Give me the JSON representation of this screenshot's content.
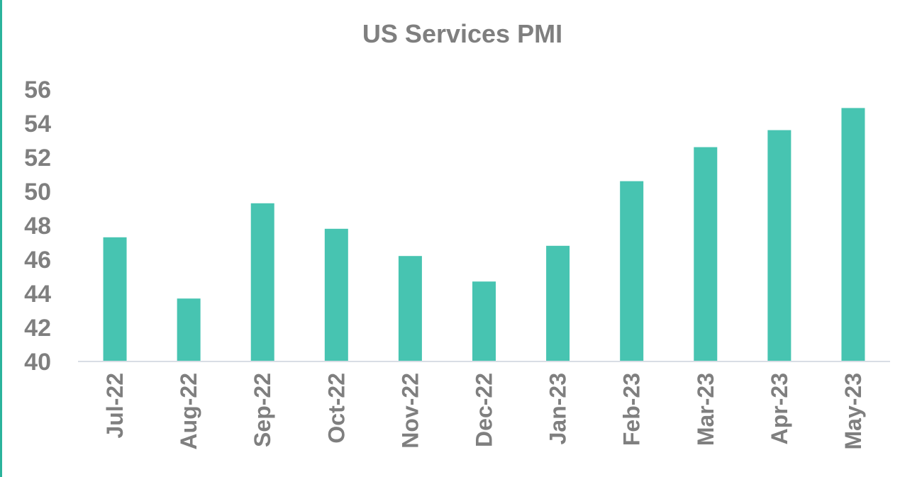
{
  "colors": {
    "bar": "#47c4b1",
    "axis": "#d9dde5",
    "text": "#7f7f7f",
    "accent_rule": "#2bb39c"
  },
  "chart_data": {
    "type": "bar",
    "title": "US Services PMI",
    "xlabel": "",
    "ylabel": "",
    "categories": [
      "Jul-22",
      "Aug-22",
      "Sep-22",
      "Oct-22",
      "Nov-22",
      "Dec-22",
      "Jan-23",
      "Feb-23",
      "Mar-23",
      "Apr-23",
      "May-23"
    ],
    "series": [
      {
        "values": [
          47.3,
          43.7,
          49.3,
          47.8,
          46.2,
          44.7,
          46.8,
          50.6,
          52.6,
          53.6,
          54.9
        ]
      }
    ],
    "ylim": [
      40,
      56
    ],
    "yticks": [
      "40",
      "42",
      "44",
      "46",
      "48",
      "50",
      "52",
      "54",
      "56"
    ],
    "grid": false,
    "legend": "none"
  }
}
